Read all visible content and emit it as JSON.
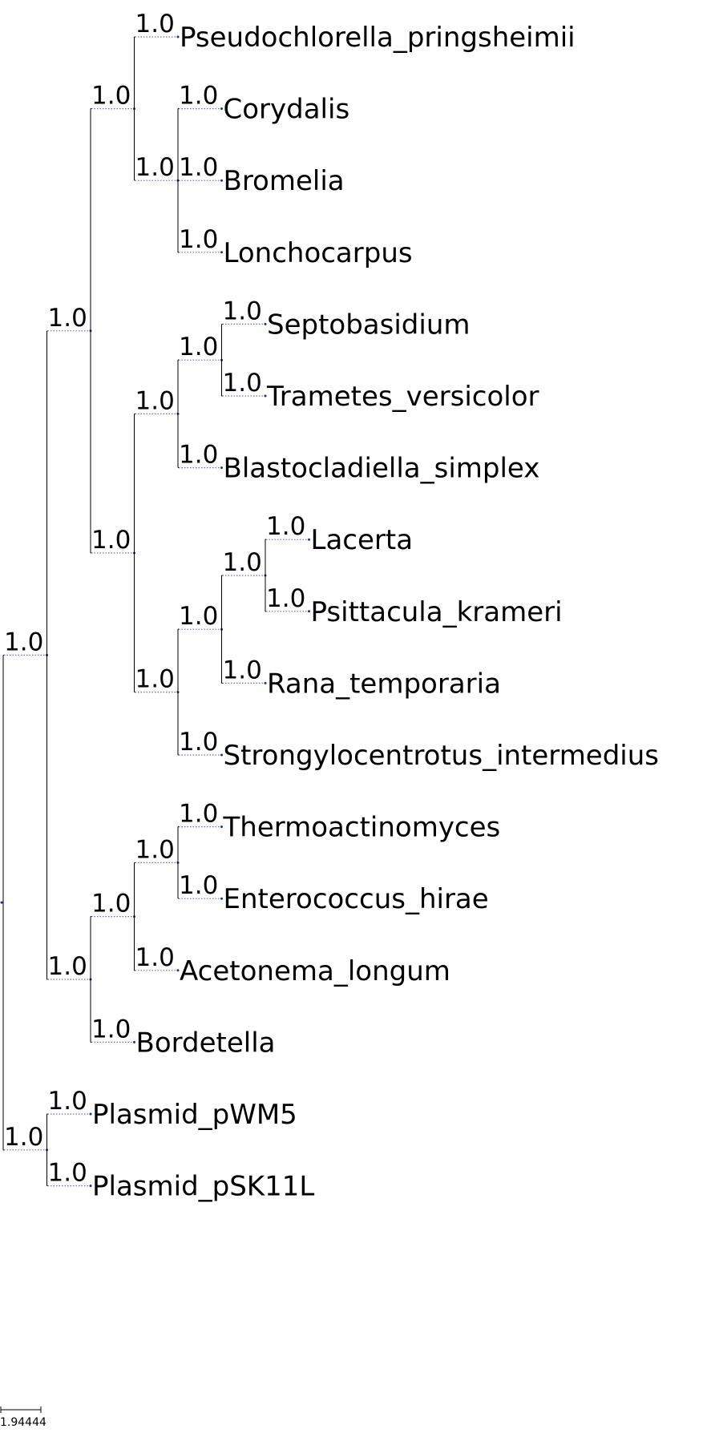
{
  "tree": {
    "name": "",
    "children": [
      {
        "support": "1.0",
        "children": [
          {
            "support": "1.0",
            "children": [
              {
                "support": "1.0",
                "children": [
                  {
                    "support": "1.0",
                    "name": "Pseudochlorella_pringsheimii"
                  },
                  {
                    "support": "1.0",
                    "children": [
                      {
                        "support": "1.0",
                        "name": "Corydalis"
                      },
                      {
                        "support": "1.0",
                        "name": "Bromelia"
                      },
                      {
                        "support": "1.0",
                        "name": "Lonchocarpus"
                      }
                    ]
                  }
                ]
              },
              {
                "support": "1.0",
                "children": [
                  {
                    "support": "1.0",
                    "children": [
                      {
                        "support": "1.0",
                        "children": [
                          {
                            "support": "1.0",
                            "name": "Septobasidium"
                          },
                          {
                            "support": "1.0",
                            "name": "Trametes_versicolor"
                          }
                        ]
                      },
                      {
                        "support": "1.0",
                        "name": "Blastocladiella_simplex"
                      }
                    ]
                  },
                  {
                    "support": "1.0",
                    "children": [
                      {
                        "support": "1.0",
                        "children": [
                          {
                            "support": "1.0",
                            "children": [
                              {
                                "support": "1.0",
                                "name": "Lacerta"
                              },
                              {
                                "support": "1.0",
                                "name": "Psittacula_krameri"
                              }
                            ]
                          },
                          {
                            "support": "1.0",
                            "name": "Rana_temporaria"
                          }
                        ]
                      },
                      {
                        "support": "1.0",
                        "name": "Strongylocentrotus_intermedius"
                      }
                    ]
                  }
                ]
              }
            ]
          },
          {
            "support": "1.0",
            "children": [
              {
                "support": "1.0",
                "children": [
                  {
                    "support": "1.0",
                    "children": [
                      {
                        "support": "1.0",
                        "name": "Thermoactinomyces"
                      },
                      {
                        "support": "1.0",
                        "name": "Enterococcus_hirae"
                      }
                    ]
                  },
                  {
                    "support": "1.0",
                    "name": "Acetonema_longum"
                  }
                ]
              },
              {
                "support": "1.0",
                "name": "Bordetella"
              }
            ]
          }
        ]
      },
      {
        "support": "1.0",
        "children": [
          {
            "support": "1.0",
            "name": "Plasmid_pWM5"
          },
          {
            "support": "1.0",
            "name": "Plasmid_pSK11L"
          }
        ]
      }
    ]
  },
  "scale_bar": {
    "label": "1.94444"
  },
  "colors": {
    "branch": "#000000",
    "node_dot": "#1a2ea8",
    "leaf_stub": "#6f6f9a"
  }
}
